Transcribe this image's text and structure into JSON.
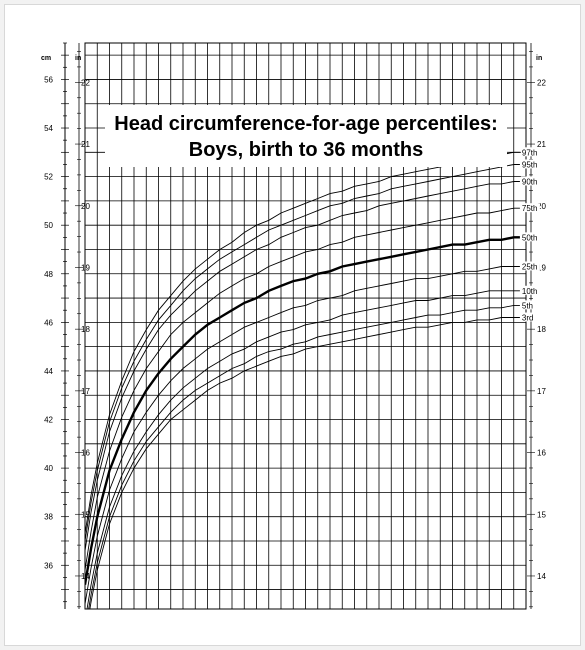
{
  "chart_data": {
    "type": "line",
    "title": "Head circumference-for-age percentiles:",
    "subtitle": "Boys, birth to 36 months",
    "units": {
      "left": "cm",
      "inner_left": "in",
      "right": "in"
    },
    "cm_ticks": [
      36,
      38,
      40,
      42,
      44,
      46,
      48,
      50,
      52,
      54,
      56
    ],
    "in_ticks": [
      14,
      15,
      16,
      17,
      18,
      19,
      20,
      21,
      22
    ],
    "in_ticks_right": [
      14,
      15,
      16,
      17,
      18,
      19,
      20,
      21,
      22
    ],
    "ylim_cm": [
      34.2,
      57.5
    ],
    "xlim_months": [
      0,
      36
    ],
    "grid": true,
    "x": [
      0,
      0.5,
      1,
      2,
      3,
      4,
      5,
      6,
      7,
      8,
      9,
      10,
      11,
      12,
      13,
      14,
      15,
      16,
      17,
      18,
      19,
      20,
      21,
      22,
      23,
      24,
      25,
      26,
      27,
      28,
      29,
      30,
      31,
      32,
      33,
      34,
      35,
      35.5
    ],
    "series": [
      {
        "name": "97th",
        "values": [
          37.3,
          38.9,
          40.2,
          42.2,
          43.6,
          44.8,
          45.7,
          46.5,
          47.1,
          47.7,
          48.2,
          48.6,
          49.0,
          49.3,
          49.7,
          50.0,
          50.2,
          50.5,
          50.7,
          50.9,
          51.1,
          51.3,
          51.4,
          51.6,
          51.7,
          51.8,
          52.0,
          52.1,
          52.2,
          52.3,
          52.4,
          52.5,
          52.6,
          52.7,
          52.8,
          52.9,
          53.0,
          53.0
        ]
      },
      {
        "name": "95th",
        "values": [
          37.0,
          38.6,
          39.9,
          41.9,
          43.3,
          44.4,
          45.3,
          46.1,
          46.7,
          47.3,
          47.8,
          48.2,
          48.6,
          48.9,
          49.2,
          49.5,
          49.8,
          50.0,
          50.2,
          50.4,
          50.6,
          50.8,
          50.9,
          51.1,
          51.2,
          51.3,
          51.5,
          51.6,
          51.7,
          51.8,
          51.9,
          52.0,
          52.1,
          52.2,
          52.3,
          52.4,
          52.5,
          52.5
        ]
      },
      {
        "name": "90th",
        "values": [
          36.6,
          38.2,
          39.5,
          41.5,
          42.9,
          44.0,
          44.9,
          45.7,
          46.3,
          46.8,
          47.3,
          47.7,
          48.1,
          48.4,
          48.7,
          49.0,
          49.2,
          49.5,
          49.7,
          49.9,
          50.0,
          50.2,
          50.4,
          50.5,
          50.6,
          50.8,
          50.9,
          51.0,
          51.1,
          51.2,
          51.3,
          51.4,
          51.5,
          51.6,
          51.7,
          51.7,
          51.8,
          51.8
        ]
      },
      {
        "name": "75th",
        "values": [
          35.8,
          37.4,
          38.8,
          40.7,
          42.1,
          43.2,
          44.1,
          44.8,
          45.5,
          46.0,
          46.4,
          46.8,
          47.2,
          47.5,
          47.8,
          48.0,
          48.3,
          48.5,
          48.7,
          48.9,
          49.0,
          49.2,
          49.3,
          49.5,
          49.6,
          49.7,
          49.8,
          49.9,
          50.0,
          50.1,
          50.2,
          50.3,
          50.4,
          50.5,
          50.5,
          50.6,
          50.7,
          50.7
        ]
      },
      {
        "name": "50th",
        "values": [
          35.2,
          36.7,
          38.0,
          39.9,
          41.2,
          42.3,
          43.2,
          43.9,
          44.5,
          45.0,
          45.5,
          45.9,
          46.2,
          46.5,
          46.8,
          47.0,
          47.3,
          47.5,
          47.7,
          47.8,
          48.0,
          48.1,
          48.3,
          48.4,
          48.5,
          48.6,
          48.7,
          48.8,
          48.9,
          49.0,
          49.1,
          49.2,
          49.2,
          49.3,
          49.4,
          49.4,
          49.5,
          49.5
        ]
      },
      {
        "name": "25th",
        "values": [
          34.4,
          35.9,
          37.2,
          39.1,
          40.4,
          41.5,
          42.3,
          43.0,
          43.6,
          44.1,
          44.5,
          44.9,
          45.2,
          45.5,
          45.8,
          46.0,
          46.2,
          46.4,
          46.6,
          46.7,
          46.9,
          47.0,
          47.1,
          47.3,
          47.4,
          47.5,
          47.6,
          47.7,
          47.8,
          47.8,
          47.9,
          48.0,
          48.1,
          48.1,
          48.2,
          48.3,
          48.3,
          48.3
        ]
      },
      {
        "name": "10th",
        "values": [
          33.7,
          35.2,
          36.5,
          38.4,
          39.7,
          40.7,
          41.5,
          42.2,
          42.8,
          43.3,
          43.7,
          44.1,
          44.4,
          44.7,
          44.9,
          45.2,
          45.4,
          45.6,
          45.7,
          45.9,
          46.0,
          46.1,
          46.3,
          46.4,
          46.5,
          46.6,
          46.7,
          46.8,
          46.9,
          46.9,
          47.0,
          47.1,
          47.1,
          47.2,
          47.3,
          47.3,
          47.3,
          47.3
        ]
      },
      {
        "name": "5th",
        "values": [
          33.3,
          34.8,
          36.1,
          38.0,
          39.3,
          40.3,
          41.1,
          41.7,
          42.3,
          42.8,
          43.2,
          43.5,
          43.8,
          44.1,
          44.3,
          44.6,
          44.8,
          44.9,
          45.1,
          45.2,
          45.4,
          45.5,
          45.6,
          45.7,
          45.8,
          45.9,
          46.0,
          46.1,
          46.2,
          46.3,
          46.3,
          46.4,
          46.5,
          46.5,
          46.6,
          46.6,
          46.7,
          46.7
        ]
      },
      {
        "name": "3rd",
        "values": [
          33.0,
          34.5,
          35.8,
          37.7,
          39.0,
          40.0,
          40.8,
          41.4,
          42.0,
          42.4,
          42.8,
          43.2,
          43.5,
          43.7,
          44.0,
          44.2,
          44.4,
          44.6,
          44.7,
          44.9,
          45.0,
          45.1,
          45.2,
          45.3,
          45.4,
          45.5,
          45.6,
          45.7,
          45.8,
          45.8,
          45.9,
          46.0,
          46.0,
          46.1,
          46.1,
          46.2,
          46.2,
          46.2
        ]
      }
    ],
    "highlight_series": "50th"
  }
}
